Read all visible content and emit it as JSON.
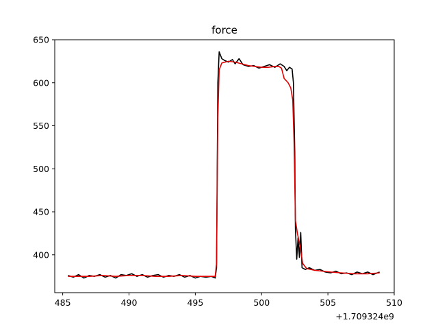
{
  "chart_data": {
    "type": "line",
    "title": "force",
    "xlabel": "",
    "ylabel": "",
    "x_offset_label": "+1.709324e9",
    "xlim": [
      484.4,
      510
    ],
    "ylim": [
      356,
      650
    ],
    "x_ticks": [
      485,
      490,
      495,
      500,
      505,
      510
    ],
    "x_tick_labels": [
      "485",
      "490",
      "495",
      "500",
      "505",
      "510"
    ],
    "y_ticks": [
      400,
      450,
      500,
      550,
      600,
      650
    ],
    "y_tick_labels": [
      "400",
      "450",
      "500",
      "550",
      "600",
      "650"
    ],
    "grid": false,
    "series": [
      {
        "color": "#000000",
        "points": [
          [
            485.4,
            376
          ],
          [
            485.8,
            374
          ],
          [
            486.2,
            377
          ],
          [
            486.6,
            373
          ],
          [
            487.0,
            376
          ],
          [
            487.4,
            375
          ],
          [
            487.8,
            377
          ],
          [
            488.2,
            374
          ],
          [
            488.6,
            376
          ],
          [
            489.0,
            373
          ],
          [
            489.4,
            377
          ],
          [
            489.8,
            376
          ],
          [
            490.2,
            378
          ],
          [
            490.6,
            375
          ],
          [
            491.0,
            377
          ],
          [
            491.4,
            374
          ],
          [
            491.8,
            376
          ],
          [
            492.2,
            377
          ],
          [
            492.6,
            374
          ],
          [
            493.0,
            376
          ],
          [
            493.4,
            375
          ],
          [
            493.8,
            377
          ],
          [
            494.2,
            374
          ],
          [
            494.6,
            376
          ],
          [
            495.0,
            373
          ],
          [
            495.4,
            375
          ],
          [
            495.8,
            374
          ],
          [
            496.2,
            375
          ],
          [
            496.5,
            373
          ],
          [
            496.6,
            385
          ],
          [
            496.7,
            600
          ],
          [
            496.8,
            636
          ],
          [
            497.0,
            628
          ],
          [
            497.2,
            626
          ],
          [
            497.5,
            624
          ],
          [
            497.8,
            627
          ],
          [
            498.0,
            622
          ],
          [
            498.3,
            628
          ],
          [
            498.6,
            621
          ],
          [
            499.0,
            619
          ],
          [
            499.4,
            620
          ],
          [
            499.8,
            617
          ],
          [
            500.2,
            619
          ],
          [
            500.6,
            621
          ],
          [
            501.0,
            618
          ],
          [
            501.4,
            622
          ],
          [
            501.7,
            619
          ],
          [
            501.9,
            614
          ],
          [
            502.1,
            618
          ],
          [
            502.3,
            616
          ],
          [
            502.4,
            600
          ],
          [
            502.5,
            520
          ],
          [
            502.55,
            430
          ],
          [
            502.65,
            395
          ],
          [
            502.75,
            420
          ],
          [
            502.85,
            397
          ],
          [
            502.95,
            426
          ],
          [
            503.05,
            385
          ],
          [
            503.3,
            383
          ],
          [
            503.6,
            385
          ],
          [
            504.0,
            382
          ],
          [
            504.4,
            383
          ],
          [
            504.8,
            380
          ],
          [
            505.2,
            379
          ],
          [
            505.6,
            381
          ],
          [
            506.0,
            378
          ],
          [
            506.4,
            379
          ],
          [
            506.8,
            377
          ],
          [
            507.2,
            380
          ],
          [
            507.6,
            378
          ],
          [
            508.0,
            380
          ],
          [
            508.4,
            377
          ],
          [
            508.9,
            380
          ]
        ]
      },
      {
        "color": "#e00000",
        "points": [
          [
            485.4,
            375
          ],
          [
            486.0,
            375
          ],
          [
            487.0,
            375
          ],
          [
            488.0,
            376
          ],
          [
            489.0,
            375
          ],
          [
            490.0,
            376
          ],
          [
            491.0,
            376
          ],
          [
            492.0,
            375
          ],
          [
            493.0,
            375
          ],
          [
            494.0,
            376
          ],
          [
            495.0,
            375
          ],
          [
            496.0,
            375
          ],
          [
            496.5,
            375
          ],
          [
            496.6,
            390
          ],
          [
            496.7,
            560
          ],
          [
            496.8,
            615
          ],
          [
            497.0,
            623
          ],
          [
            497.5,
            625
          ],
          [
            498.0,
            624
          ],
          [
            498.5,
            622
          ],
          [
            499.0,
            620
          ],
          [
            499.5,
            619
          ],
          [
            500.0,
            618
          ],
          [
            500.5,
            618
          ],
          [
            501.0,
            619
          ],
          [
            501.3,
            619
          ],
          [
            501.5,
            617
          ],
          [
            501.7,
            605
          ],
          [
            502.0,
            600
          ],
          [
            502.2,
            594
          ],
          [
            502.35,
            580
          ],
          [
            502.45,
            530
          ],
          [
            502.55,
            440
          ],
          [
            502.7,
            425
          ],
          [
            502.9,
            410
          ],
          [
            503.1,
            390
          ],
          [
            503.4,
            384
          ],
          [
            504.0,
            382
          ],
          [
            504.6,
            381
          ],
          [
            505.2,
            380
          ],
          [
            506.0,
            379
          ],
          [
            507.0,
            378
          ],
          [
            508.0,
            378
          ],
          [
            508.9,
            379
          ]
        ]
      }
    ]
  }
}
